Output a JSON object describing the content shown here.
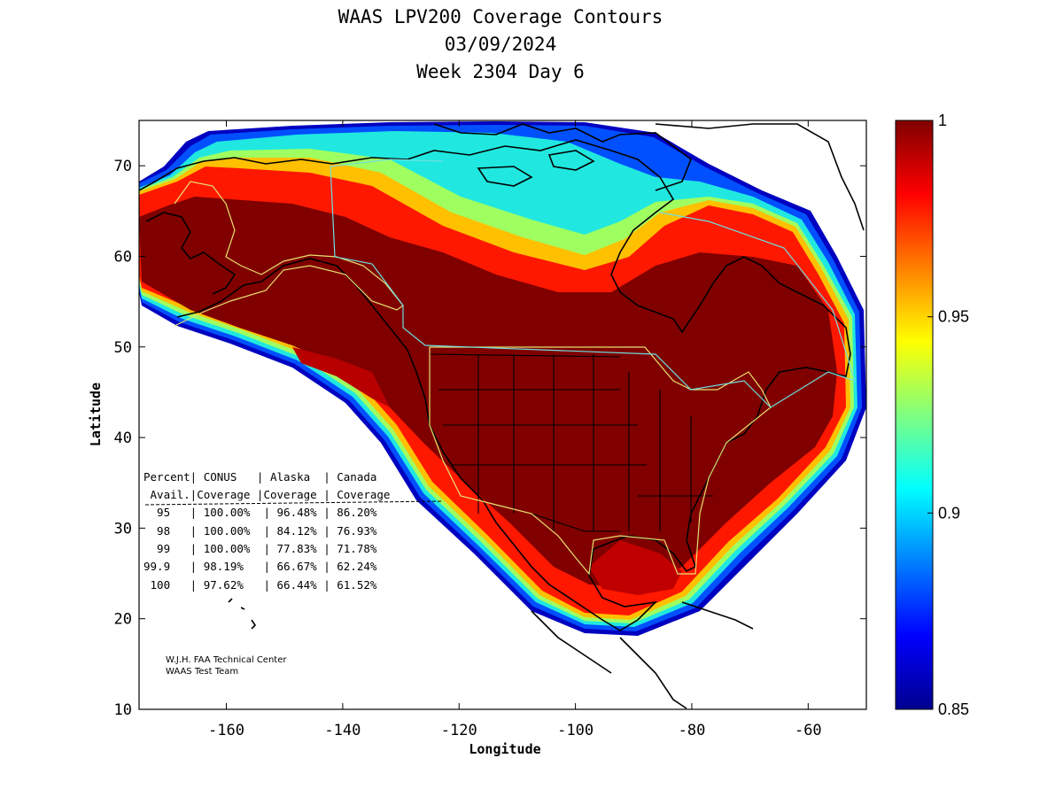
{
  "title": {
    "line1": "WAAS LPV200 Coverage Contours",
    "line2": "03/09/2024",
    "line3": "Week 2304 Day 6"
  },
  "axes": {
    "xlabel": "Longitude",
    "ylabel": "Latitude",
    "xlim": [
      -175,
      -50
    ],
    "ylim": [
      10,
      75
    ],
    "xticks": [
      "-160",
      "-140",
      "-120",
      "-100",
      "-80",
      "-60"
    ],
    "xtick_values": [
      -160,
      -140,
      -120,
      -100,
      -80,
      -60
    ],
    "yticks": [
      "10",
      "20",
      "30",
      "40",
      "50",
      "60",
      "70"
    ],
    "ytick_values": [
      10,
      20,
      30,
      40,
      50,
      60,
      70
    ]
  },
  "colorbar": {
    "min": 0.85,
    "max": 1,
    "tick_labels": [
      "1",
      "0.95",
      "0.9",
      "0.85"
    ],
    "tick_values": [
      1,
      0.95,
      0.9,
      0.85
    ],
    "colormap": "jet",
    "colors": [
      "#00008f",
      "#0000ff",
      "#0080ff",
      "#00ffff",
      "#80ff80",
      "#ffff00",
      "#ff8000",
      "#ff0000",
      "#800000"
    ]
  },
  "availability_table": {
    "header_row1": "Percent| CONUS   | Alaska  | Canada",
    "header_row2": " Avail.|Coverage |Coverage | Coverage",
    "separator": "-----------------------------------------",
    "rows": [
      "  95   | 100.00%  | 96.48% | 86.20%",
      "  98   | 100.00%  | 84.12% | 76.93%",
      "  99   | 100.00%  | 77.83% | 71.78%",
      "99.9   | 98.19%   | 66.67% | 62.24%",
      " 100   | 97.62%   | 66.44% | 61.52%"
    ]
  },
  "credit": {
    "line1": "W.J.H. FAA Technical Center",
    "line2": "WAAS Test Team"
  }
}
